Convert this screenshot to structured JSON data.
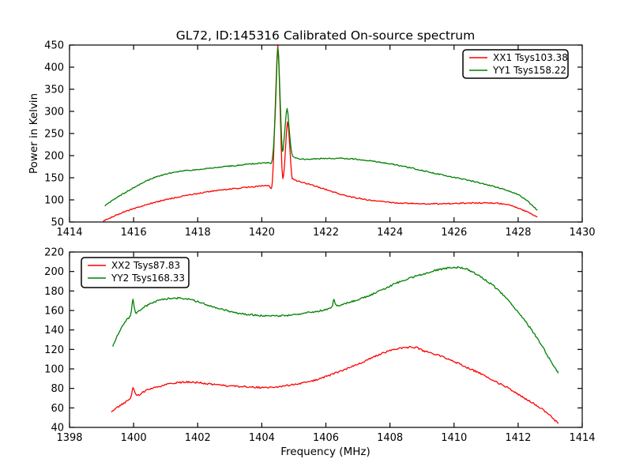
{
  "chart_data": [
    {
      "type": "line",
      "title": "GL72, ID:145316 Calibrated On-source spectrum",
      "xlabel": "",
      "ylabel": "Power in Kelvin",
      "xlim": [
        1414,
        1430
      ],
      "ylim": [
        50,
        450
      ],
      "xticks": [
        1414,
        1416,
        1418,
        1420,
        1422,
        1424,
        1426,
        1428,
        1430
      ],
      "yticks": [
        50,
        100,
        150,
        200,
        250,
        300,
        350,
        400,
        450
      ],
      "grid": false,
      "legend_position": "top-right",
      "series": [
        {
          "name": "XX1 Tsys103.38",
          "color": "#ff0000",
          "points": [
            [
              1415.05,
              52
            ],
            [
              1415.35,
              62
            ],
            [
              1415.65,
              71
            ],
            [
              1415.95,
              79
            ],
            [
              1416.3,
              87
            ],
            [
              1416.7,
              95
            ],
            [
              1417.1,
              102
            ],
            [
              1417.5,
              108
            ],
            [
              1417.9,
              113
            ],
            [
              1418.3,
              118
            ],
            [
              1418.7,
              122
            ],
            [
              1419.1,
              125
            ],
            [
              1419.5,
              128
            ],
            [
              1419.9,
              131
            ],
            [
              1420.2,
              133
            ],
            [
              1420.33,
              140
            ],
            [
              1420.42,
              310
            ],
            [
              1420.5,
              449
            ],
            [
              1420.56,
              340
            ],
            [
              1420.63,
              170
            ],
            [
              1420.68,
              155
            ],
            [
              1420.74,
              215
            ],
            [
              1420.8,
              277
            ],
            [
              1420.86,
              235
            ],
            [
              1420.93,
              158
            ],
            [
              1421.0,
              146
            ],
            [
              1421.2,
              141
            ],
            [
              1421.5,
              135
            ],
            [
              1421.8,
              128
            ],
            [
              1422.1,
              121
            ],
            [
              1422.4,
              114
            ],
            [
              1422.7,
              108
            ],
            [
              1423.0,
              104
            ],
            [
              1423.4,
              99
            ],
            [
              1423.8,
              96
            ],
            [
              1424.2,
              93
            ],
            [
              1424.6,
              92
            ],
            [
              1425.0,
              91
            ],
            [
              1425.4,
              91
            ],
            [
              1425.8,
              91.5
            ],
            [
              1426.2,
              92.5
            ],
            [
              1426.6,
              93
            ],
            [
              1427.0,
              93
            ],
            [
              1427.4,
              92
            ],
            [
              1427.7,
              88
            ],
            [
              1428.0,
              82
            ],
            [
              1428.3,
              72
            ],
            [
              1428.6,
              61
            ]
          ]
        },
        {
          "name": "YY1 Tsys158.22",
          "color": "#008000",
          "points": [
            [
              1415.1,
              87
            ],
            [
              1415.4,
              102
            ],
            [
              1415.7,
              115
            ],
            [
              1416.0,
              127
            ],
            [
              1416.3,
              139
            ],
            [
              1416.6,
              149
            ],
            [
              1416.9,
              156
            ],
            [
              1417.2,
              161
            ],
            [
              1417.5,
              165
            ],
            [
              1417.9,
              168
            ],
            [
              1418.3,
              171
            ],
            [
              1418.7,
              174
            ],
            [
              1419.1,
              177
            ],
            [
              1419.5,
              180
            ],
            [
              1419.9,
              183
            ],
            [
              1420.2,
              185
            ],
            [
              1420.33,
              192
            ],
            [
              1420.42,
              295
            ],
            [
              1420.5,
              443
            ],
            [
              1420.57,
              335
            ],
            [
              1420.64,
              210
            ],
            [
              1420.71,
              250
            ],
            [
              1420.79,
              307
            ],
            [
              1420.87,
              248
            ],
            [
              1420.94,
              205
            ],
            [
              1421.05,
              195
            ],
            [
              1421.3,
              192
            ],
            [
              1421.6,
              192.5
            ],
            [
              1421.9,
              193.5
            ],
            [
              1422.2,
              194
            ],
            [
              1422.5,
              193.5
            ],
            [
              1422.8,
              192.5
            ],
            [
              1423.1,
              190.5
            ],
            [
              1423.4,
              188
            ],
            [
              1423.7,
              185
            ],
            [
              1424.0,
              181.5
            ],
            [
              1424.3,
              177.5
            ],
            [
              1424.7,
              171.5
            ],
            [
              1425.1,
              165
            ],
            [
              1425.5,
              158.5
            ],
            [
              1425.9,
              152.5
            ],
            [
              1426.3,
              146.5
            ],
            [
              1426.7,
              140
            ],
            [
              1427.1,
              133
            ],
            [
              1427.5,
              125
            ],
            [
              1427.9,
              115
            ],
            [
              1428.2,
              103
            ],
            [
              1428.4,
              90
            ],
            [
              1428.6,
              76
            ]
          ]
        }
      ]
    },
    {
      "type": "line",
      "title": "",
      "xlabel": "Frequency (MHz)",
      "ylabel": "",
      "xlim": [
        1398,
        1414
      ],
      "ylim": [
        40,
        220
      ],
      "xticks": [
        1398,
        1400,
        1402,
        1404,
        1406,
        1408,
        1410,
        1412,
        1414
      ],
      "yticks": [
        40,
        60,
        80,
        100,
        120,
        140,
        160,
        180,
        200,
        220
      ],
      "grid": false,
      "legend_position": "top-left",
      "series": [
        {
          "name": "XX2 Tsys87.83",
          "color": "#ff0000",
          "points": [
            [
              1399.3,
              56
            ],
            [
              1399.6,
              63
            ],
            [
              1399.9,
              70
            ],
            [
              1399.98,
              80
            ],
            [
              1400.1,
              73
            ],
            [
              1400.4,
              78
            ],
            [
              1400.8,
              82
            ],
            [
              1401.2,
              85
            ],
            [
              1401.6,
              86.5
            ],
            [
              1402.0,
              86
            ],
            [
              1402.4,
              84.5
            ],
            [
              1402.8,
              83
            ],
            [
              1403.2,
              82
            ],
            [
              1403.6,
              81.5
            ],
            [
              1404.0,
              81
            ],
            [
              1404.4,
              81.5
            ],
            [
              1404.8,
              83
            ],
            [
              1405.2,
              85
            ],
            [
              1405.6,
              88
            ],
            [
              1406.0,
              92
            ],
            [
              1406.4,
              97
            ],
            [
              1406.8,
              102
            ],
            [
              1407.2,
              108
            ],
            [
              1407.6,
              114
            ],
            [
              1408.0,
              119
            ],
            [
              1408.4,
              121.5
            ],
            [
              1408.8,
              122
            ],
            [
              1409.05,
              118.5
            ],
            [
              1409.3,
              116
            ],
            [
              1409.7,
              112
            ],
            [
              1410.1,
              106
            ],
            [
              1410.5,
              100
            ],
            [
              1410.9,
              94
            ],
            [
              1411.3,
              87
            ],
            [
              1411.7,
              80
            ],
            [
              1412.1,
              72
            ],
            [
              1412.5,
              64
            ],
            [
              1412.9,
              55
            ],
            [
              1413.25,
              44
            ]
          ]
        },
        {
          "name": "YY2 Tsys168.33",
          "color": "#008000",
          "points": [
            [
              1399.35,
              123
            ],
            [
              1399.55,
              138
            ],
            [
              1399.75,
              149
            ],
            [
              1399.9,
              155
            ],
            [
              1399.98,
              171
            ],
            [
              1400.06,
              158
            ],
            [
              1400.3,
              163
            ],
            [
              1400.6,
              168
            ],
            [
              1400.9,
              171
            ],
            [
              1401.2,
              172.5
            ],
            [
              1401.5,
              172.5
            ],
            [
              1401.8,
              171
            ],
            [
              1402.1,
              168
            ],
            [
              1402.5,
              163.5
            ],
            [
              1402.9,
              160
            ],
            [
              1403.3,
              157
            ],
            [
              1403.7,
              155.5
            ],
            [
              1404.1,
              154.5
            ],
            [
              1404.5,
              154.5
            ],
            [
              1404.9,
              155
            ],
            [
              1405.3,
              157
            ],
            [
              1405.7,
              159
            ],
            [
              1406.0,
              161
            ],
            [
              1406.18,
              163
            ],
            [
              1406.25,
              171
            ],
            [
              1406.35,
              165
            ],
            [
              1406.7,
              168
            ],
            [
              1407.0,
              171
            ],
            [
              1407.4,
              176
            ],
            [
              1407.8,
              182
            ],
            [
              1408.2,
              188
            ],
            [
              1408.6,
              193
            ],
            [
              1409.0,
              197
            ],
            [
              1409.4,
              201
            ],
            [
              1409.7,
              203
            ],
            [
              1410.0,
              204
            ],
            [
              1410.3,
              203.5
            ],
            [
              1410.6,
              199
            ],
            [
              1410.9,
              193
            ],
            [
              1411.2,
              186
            ],
            [
              1411.5,
              177
            ],
            [
              1411.8,
              166
            ],
            [
              1412.1,
              154
            ],
            [
              1412.4,
              141
            ],
            [
              1412.7,
              126
            ],
            [
              1413.0,
              109
            ],
            [
              1413.25,
              96
            ]
          ]
        }
      ]
    }
  ]
}
